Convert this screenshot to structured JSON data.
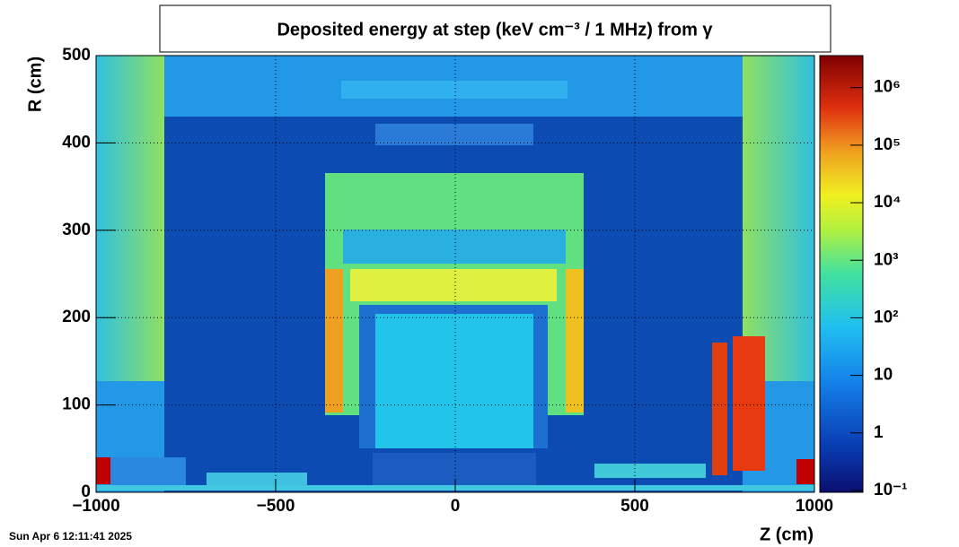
{
  "chart_data": {
    "type": "heatmap",
    "title": "Deposited energy at step (keV cm⁻³ / 1 MHz)  from γ",
    "x_label": "Z (cm)",
    "y_label": "R (cm)",
    "xlim": [
      -1000,
      1000
    ],
    "xticks": [
      {
        "value": -1000,
        "label": "−1000"
      },
      {
        "value": -500,
        "label": "−500"
      },
      0,
      500,
      1000
    ],
    "ylim": [
      0,
      500
    ],
    "yticks": [
      0,
      100,
      200,
      300,
      400,
      500
    ],
    "zlim": [
      0.093,
      3600000
    ],
    "zscale": "log",
    "zticks": [
      {
        "value": 0.1,
        "label": "10⁻¹"
      },
      1,
      10,
      {
        "value": 100,
        "label": "10²"
      },
      {
        "value": 1000,
        "label": "10³"
      },
      {
        "value": 10000,
        "label": "10⁴"
      },
      {
        "value": 100000,
        "label": "10⁵"
      },
      {
        "value": 1000000,
        "label": "10⁶"
      }
    ],
    "grid": true,
    "timestamp": "Sun Apr  6 12:11:41 2025"
  }
}
